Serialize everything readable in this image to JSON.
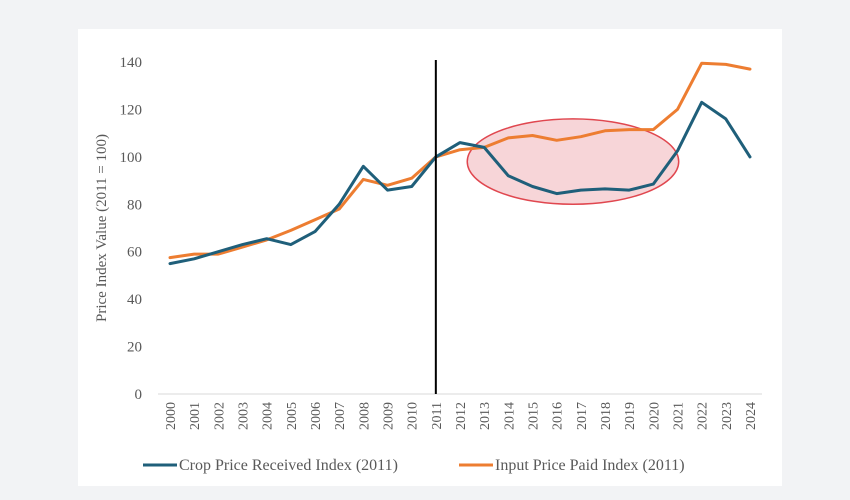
{
  "chart_data": {
    "type": "line",
    "title": "",
    "xlabel": "",
    "ylabel": "Price Index Value (2011 = 100)",
    "ylim": [
      0,
      140
    ],
    "yticks": [
      0,
      20,
      40,
      60,
      80,
      100,
      120,
      140
    ],
    "ytick_labels": [
      "0",
      "20",
      "40",
      "60",
      "80",
      "100",
      "120",
      "140"
    ],
    "grid": false,
    "x": [
      "2000",
      "2001",
      "2002",
      "2003",
      "2004",
      "2005",
      "2006",
      "2007",
      "2008",
      "2009",
      "2010",
      "2011",
      "2012",
      "2013",
      "2014",
      "2015",
      "2016",
      "2017",
      "2018",
      "2019",
      "2020",
      "2021",
      "2022",
      "2023",
      "2024"
    ],
    "series": [
      {
        "name": "Crop Price Received Index (2011)",
        "color": "#1f5f7a",
        "values": [
          55,
          57,
          60,
          63,
          65.5,
          63,
          68.5,
          80,
          96,
          86,
          87.5,
          100,
          106,
          104,
          92,
          87.5,
          84.5,
          86,
          86.5,
          86,
          88.5,
          102.5,
          123,
          116,
          100
        ]
      },
      {
        "name": "Input Price Paid Index (2011)",
        "color": "#ed7d31",
        "values": [
          57.5,
          59,
          59,
          62,
          65,
          69,
          73.5,
          78,
          90.5,
          88,
          91,
          100,
          103,
          104,
          108,
          109,
          107,
          108.5,
          111,
          111.5,
          111.5,
          120,
          139.5,
          139,
          137
        ]
      }
    ],
    "annotations": [
      {
        "type": "vertical-line",
        "x": "2011",
        "color": "#000000"
      },
      {
        "type": "ellipse-highlight",
        "x_range": [
          "2013",
          "2021"
        ],
        "y_range": [
          80,
          116
        ],
        "fill": "#f4c7cb",
        "stroke": "#e0474f"
      }
    ],
    "legend": {
      "placement": "bottom",
      "entries": [
        "Crop Price Received Index (2011)",
        "Input Price Paid Index (2011)"
      ]
    }
  }
}
